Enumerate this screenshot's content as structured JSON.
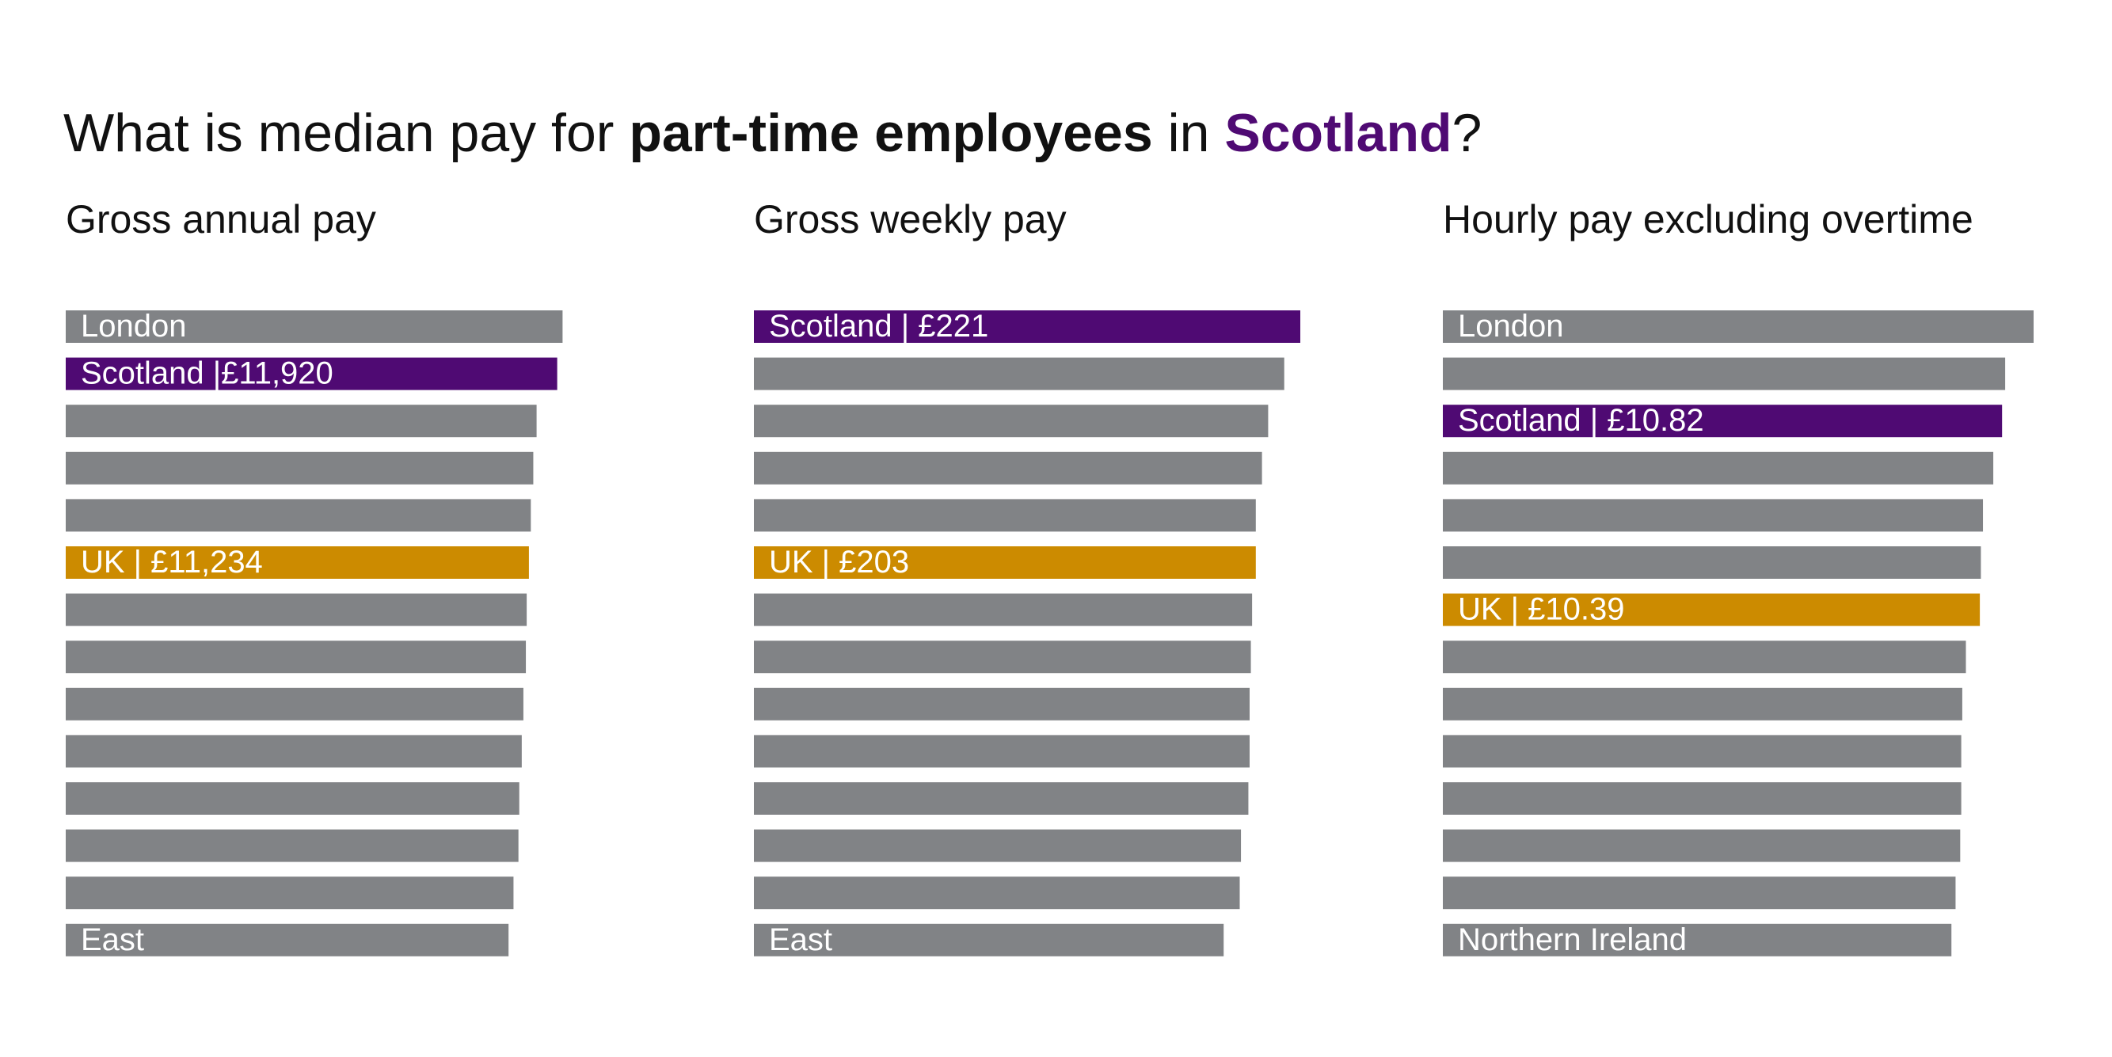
{
  "title": {
    "part1": "What is median pay for ",
    "part2": "part-time employees",
    "part3": " in ",
    "part4": "Scotland",
    "part5": "?"
  },
  "colors": {
    "scotland": "#4f0a73",
    "uk": "#cc8b00",
    "other": "#818386",
    "text": "#111111"
  },
  "chart_data": [
    {
      "type": "bar",
      "orientation": "horizontal",
      "title": "Gross annual pay",
      "unit": "£",
      "xlim": [
        0,
        12100
      ],
      "bars": [
        {
          "label": "London",
          "value": 12050,
          "highlight": "other"
        },
        {
          "label": "Scotland |£11,920",
          "value": 11920,
          "highlight": "scotland"
        },
        {
          "label": "",
          "value": 11420,
          "highlight": "other"
        },
        {
          "label": "",
          "value": 11340,
          "highlight": "other"
        },
        {
          "label": "",
          "value": 11280,
          "highlight": "other"
        },
        {
          "label": "UK | £11,234",
          "value": 11234,
          "highlight": "uk"
        },
        {
          "label": "",
          "value": 11180,
          "highlight": "other"
        },
        {
          "label": "",
          "value": 11160,
          "highlight": "other"
        },
        {
          "label": "",
          "value": 11100,
          "highlight": "other"
        },
        {
          "label": "",
          "value": 11060,
          "highlight": "other"
        },
        {
          "label": "",
          "value": 11000,
          "highlight": "other"
        },
        {
          "label": "",
          "value": 10980,
          "highlight": "other"
        },
        {
          "label": "",
          "value": 10860,
          "highlight": "other"
        },
        {
          "label": "East",
          "value": 10740,
          "highlight": "other"
        }
      ]
    },
    {
      "type": "bar",
      "orientation": "horizontal",
      "title": "Gross weekly pay",
      "unit": "£",
      "xlim": [
        0,
        221
      ],
      "bars": [
        {
          "label": "Scotland | £221",
          "value": 221,
          "highlight": "scotland"
        },
        {
          "label": "",
          "value": 214.5,
          "highlight": "other"
        },
        {
          "label": "",
          "value": 208,
          "highlight": "other"
        },
        {
          "label": "",
          "value": 205.5,
          "highlight": "other"
        },
        {
          "label": "",
          "value": 203,
          "highlight": "other"
        },
        {
          "label": "UK | £203",
          "value": 203,
          "highlight": "uk"
        },
        {
          "label": "",
          "value": 201.5,
          "highlight": "other"
        },
        {
          "label": "",
          "value": 201,
          "highlight": "other"
        },
        {
          "label": "",
          "value": 200.5,
          "highlight": "other"
        },
        {
          "label": "",
          "value": 200.5,
          "highlight": "other"
        },
        {
          "label": "",
          "value": 200,
          "highlight": "other"
        },
        {
          "label": "",
          "value": 197,
          "highlight": "other"
        },
        {
          "label": "",
          "value": 196.5,
          "highlight": "other"
        },
        {
          "label": "East",
          "value": 190,
          "highlight": "other"
        }
      ]
    },
    {
      "type": "bar",
      "orientation": "horizontal",
      "title": "Hourly pay excluding overtime",
      "unit": "£",
      "xlim": [
        0,
        11.43
      ],
      "bars": [
        {
          "label": "London",
          "value": 11.43,
          "highlight": "other"
        },
        {
          "label": "",
          "value": 10.88,
          "highlight": "other"
        },
        {
          "label": "Scotland  | £10.82",
          "value": 10.82,
          "highlight": "scotland"
        },
        {
          "label": "",
          "value": 10.65,
          "highlight": "other"
        },
        {
          "label": "",
          "value": 10.45,
          "highlight": "other"
        },
        {
          "label": "",
          "value": 10.41,
          "highlight": "other"
        },
        {
          "label": "UK | £10.39",
          "value": 10.39,
          "highlight": "uk"
        },
        {
          "label": "",
          "value": 10.12,
          "highlight": "other"
        },
        {
          "label": "",
          "value": 10.05,
          "highlight": "other"
        },
        {
          "label": "",
          "value": 10.03,
          "highlight": "other"
        },
        {
          "label": "",
          "value": 10.03,
          "highlight": "other"
        },
        {
          "label": "",
          "value": 10.01,
          "highlight": "other"
        },
        {
          "label": "",
          "value": 9.92,
          "highlight": "other"
        },
        {
          "label": "Northern Ireland",
          "value": 9.84,
          "highlight": "other"
        }
      ]
    }
  ]
}
